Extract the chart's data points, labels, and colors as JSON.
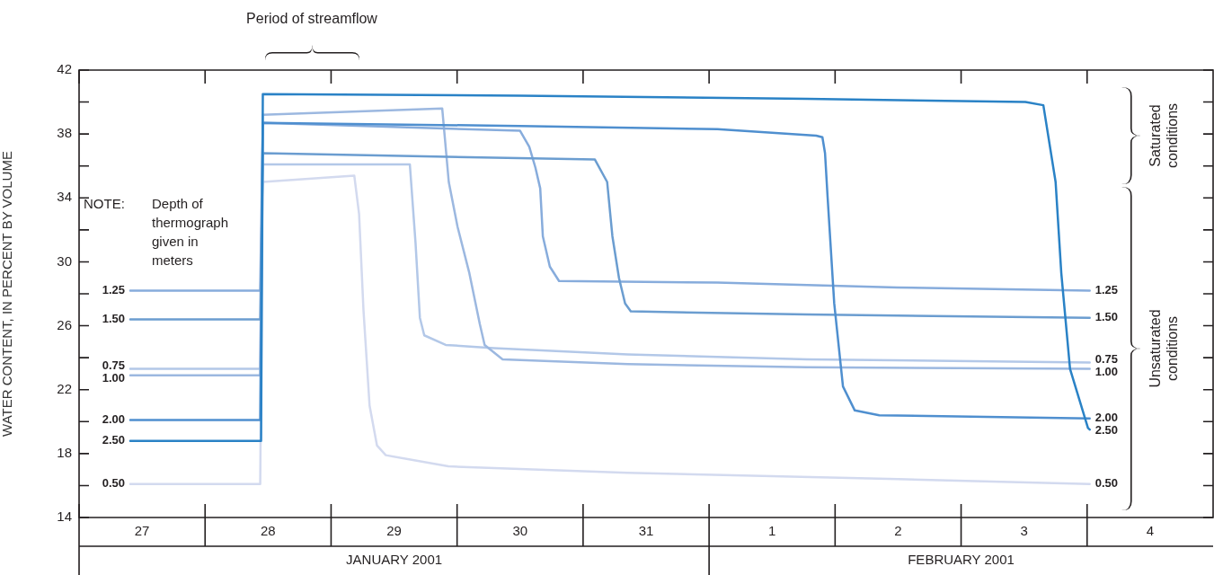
{
  "chart_data": {
    "type": "line",
    "ylabel": "WATER CONTENT, IN PERCENT BY VOLUME",
    "xlim": [
      "2001-01-27",
      "2001-02-05"
    ],
    "xticks": [
      {
        "value": "2001-01-27",
        "label": null
      },
      {
        "value": "2001-01-27T12:00",
        "label": "27"
      },
      {
        "value": "2001-01-28",
        "label": null
      },
      {
        "value": "2001-01-28T12:00",
        "label": "28"
      },
      {
        "value": "2001-01-29",
        "label": null
      },
      {
        "value": "2001-01-29T12:00",
        "label": "29"
      },
      {
        "value": "2001-01-30",
        "label": null
      },
      {
        "value": "2001-01-30T12:00",
        "label": "30"
      },
      {
        "value": "2001-01-31",
        "label": null
      },
      {
        "value": "2001-01-31T12:00",
        "label": "31"
      },
      {
        "value": "2001-02-01",
        "label": null
      },
      {
        "value": "2001-02-01T12:00",
        "label": "1"
      },
      {
        "value": "2001-02-02",
        "label": null
      },
      {
        "value": "2001-02-02T12:00",
        "label": "2"
      },
      {
        "value": "2001-02-03",
        "label": null
      },
      {
        "value": "2001-02-03T12:00",
        "label": "3"
      },
      {
        "value": "2001-02-04",
        "label": null
      },
      {
        "value": "2001-02-04T12:00",
        "label": "4"
      }
    ],
    "ylim": [
      14,
      42
    ],
    "yticks": [
      14,
      {
        "value": 16,
        "label": null
      },
      18,
      {
        "value": 20,
        "label": null
      },
      22,
      {
        "value": 24,
        "label": null
      },
      26,
      {
        "value": 28,
        "label": null
      },
      30,
      {
        "value": 32,
        "label": null
      },
      34,
      {
        "value": 36,
        "label": null
      },
      38,
      {
        "value": 40,
        "label": null
      },
      42
    ],
    "series": [
      {
        "name": "0.50",
        "color": "#d3daef",
        "x": [
          "2001-01-27T09:45",
          "2001-01-28T10:30",
          "2001-01-28T11:00",
          "2001-01-29T04:25",
          "2001-01-29T05:20",
          "2001-01-29T06:10",
          "2001-01-29T07:20",
          "2001-01-29T08:45",
          "2001-01-29T10:25",
          "2001-01-29T22:20",
          "2001-01-31T08:30",
          "2001-02-02T12:00",
          "2001-02-04T00:30"
        ],
        "values": [
          16.1,
          16.1,
          35.0,
          35.4,
          33,
          27,
          21,
          18.5,
          17.9,
          17.2,
          16.8,
          16.4,
          16.1
        ]
      },
      {
        "name": "0.75",
        "color": "#b3c8e8",
        "x": [
          "2001-01-27T09:45",
          "2001-01-28T10:30",
          "2001-01-28T11:00",
          "2001-01-29T15:00",
          "2001-01-29T16:05",
          "2001-01-29T16:55",
          "2001-01-29T17:45",
          "2001-01-29T21:50",
          "2001-01-30T07:00",
          "2001-01-31T08:30",
          "2001-02-01T18:40",
          "2001-02-04T00:30"
        ],
        "values": [
          23.3,
          23.3,
          36.1,
          36.1,
          31.2,
          26.5,
          25.4,
          24.8,
          24.6,
          24.2,
          23.9,
          23.7
        ]
      },
      {
        "name": "1.00",
        "color": "#9cb8e0",
        "x": [
          "2001-01-27T09:45",
          "2001-01-28T10:30",
          "2001-01-28T11:00",
          "2001-01-29T21:10",
          "2001-01-29T22:25",
          "2001-01-30T00:05",
          "2001-01-30T02:20",
          "2001-01-30T04:20",
          "2001-01-30T05:15",
          "2001-01-30T08:40",
          "2001-01-31T08:30",
          "2001-02-01T18:40",
          "2001-02-04T00:30"
        ],
        "values": [
          22.9,
          22.9,
          39.2,
          39.6,
          35,
          32.2,
          29.3,
          26.1,
          24.8,
          23.9,
          23.6,
          23.4,
          23.3
        ]
      },
      {
        "name": "1.25",
        "color": "#87acdc",
        "x": [
          "2001-01-27T09:45",
          "2001-01-28T10:30",
          "2001-01-28T11:00",
          "2001-01-30T12:00",
          "2001-01-30T13:45",
          "2001-01-30T14:55",
          "2001-01-30T15:50",
          "2001-01-30T16:20",
          "2001-01-30T17:40",
          "2001-01-30T19:25",
          "2001-02-01T01:35",
          "2001-02-02T11:50",
          "2001-02-04T00:30"
        ],
        "values": [
          28.2,
          28.2,
          38.7,
          38.2,
          37.2,
          35.9,
          34.6,
          31.6,
          29.7,
          28.8,
          28.7,
          28.4,
          28.2
        ]
      },
      {
        "name": "1.50",
        "color": "#6b9dd0",
        "x": [
          "2001-01-27T09:45",
          "2001-01-28T10:30",
          "2001-01-28T11:00",
          "2001-01-31T02:15",
          "2001-01-31T04:35",
          "2001-01-31T05:35",
          "2001-01-31T06:50",
          "2001-01-31T08:00",
          "2001-01-31T09:05",
          "2001-02-01T18:40",
          "2001-02-04T00:30"
        ],
        "values": [
          26.4,
          26.4,
          36.8,
          36.4,
          35,
          31.6,
          29,
          27.4,
          26.9,
          26.7,
          26.5
        ]
      },
      {
        "name": "2.00",
        "color": "#4f8fcf",
        "x": [
          "2001-01-27T09:45",
          "2001-01-28T10:30",
          "2001-01-28T11:00",
          "2001-01-30T12:00",
          "2001-02-01T01:35",
          "2001-02-01T20:25",
          "2001-02-01T21:35",
          "2001-02-01T22:05",
          "2001-02-01T22:35",
          "2001-02-01T23:50",
          "2001-02-02T01:30",
          "2001-02-02T03:45",
          "2001-02-02T08:25",
          "2001-02-04T00:30"
        ],
        "values": [
          20.1,
          20.1,
          38.7,
          38.5,
          38.3,
          37.9,
          37.8,
          36.8,
          34,
          27.4,
          22.2,
          20.7,
          20.4,
          20.2
        ]
      },
      {
        "name": "2.50",
        "color": "#2a82c6",
        "x": [
          "2001-01-27T09:45",
          "2001-01-28T10:40",
          "2001-01-28T11:00",
          "2001-01-30T12:00",
          "2001-02-01T18:40",
          "2001-02-03T12:15",
          "2001-02-03T15:40",
          "2001-02-03T18:00",
          "2001-02-03T19:05",
          "2001-02-03T20:45",
          "2001-02-04T00:10",
          "2001-02-04T00:30"
        ],
        "values": [
          18.8,
          18.8,
          40.5,
          40.4,
          40.2,
          40.0,
          39.8,
          35,
          29.3,
          23.3,
          19.6,
          19.5
        ]
      }
    ],
    "annotations": [
      "Period of streamflow",
      "Saturated conditions",
      "Unsaturated conditions",
      "NOTE:  Depth of thermograph given in meters",
      "JANUARY 2001",
      "FEBRUARY 2001"
    ]
  }
}
